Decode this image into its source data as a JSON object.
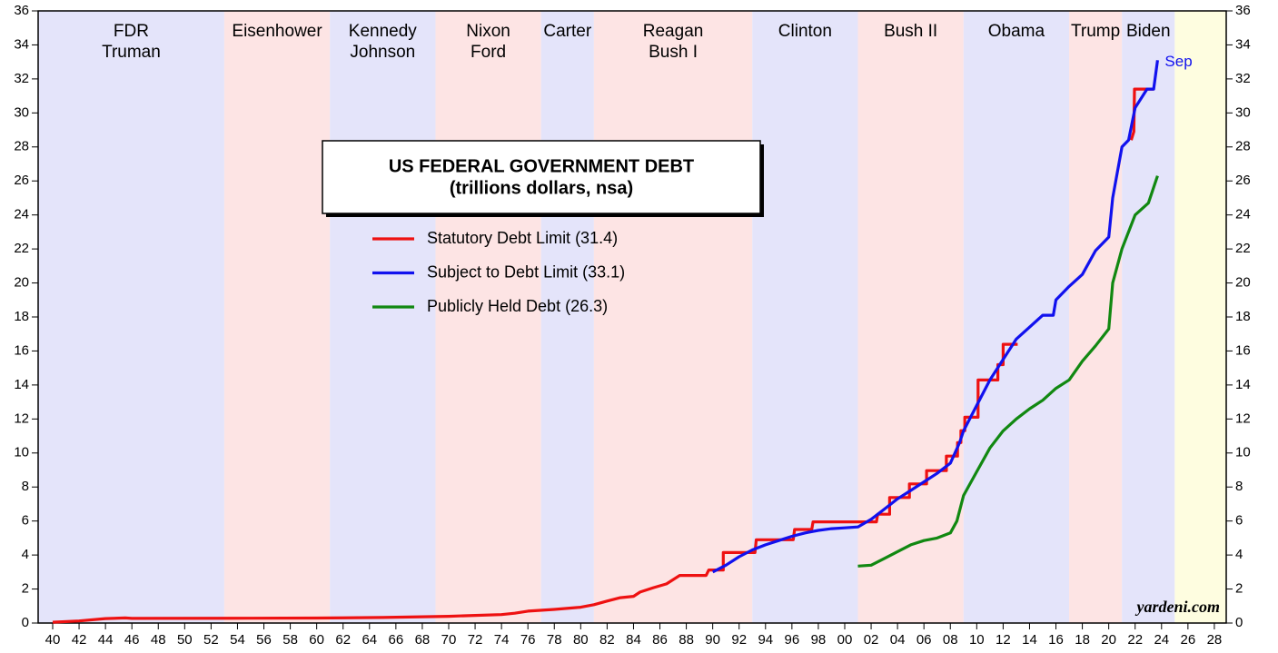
{
  "chart_data": {
    "type": "line",
    "title": [
      "US FEDERAL GOVERNMENT DEBT",
      "(trillions dollars, nsa)"
    ],
    "annotation": "Sep",
    "credit": "yardeni.com",
    "xlim": [
      1938.9,
      2028.9
    ],
    "ylim": [
      0,
      36
    ],
    "y2lim": [
      0,
      36
    ],
    "yticks": [
      0,
      2,
      4,
      6,
      8,
      10,
      12,
      14,
      16,
      18,
      20,
      22,
      24,
      26,
      28,
      30,
      32,
      34,
      36
    ],
    "y2ticks": [
      0,
      2,
      4,
      6,
      8,
      10,
      12,
      14,
      16,
      18,
      20,
      22,
      24,
      26,
      28,
      30,
      32,
      34,
      36
    ],
    "xticks": [
      {
        "value": 1940,
        "label": "40"
      },
      {
        "value": 1942,
        "label": "42"
      },
      {
        "value": 1944,
        "label": "44"
      },
      {
        "value": 1946,
        "label": "46"
      },
      {
        "value": 1948,
        "label": "48"
      },
      {
        "value": 1950,
        "label": "50"
      },
      {
        "value": 1952,
        "label": "52"
      },
      {
        "value": 1954,
        "label": "54"
      },
      {
        "value": 1956,
        "label": "56"
      },
      {
        "value": 1958,
        "label": "58"
      },
      {
        "value": 1960,
        "label": "60"
      },
      {
        "value": 1962,
        "label": "62"
      },
      {
        "value": 1964,
        "label": "64"
      },
      {
        "value": 1966,
        "label": "66"
      },
      {
        "value": 1968,
        "label": "68"
      },
      {
        "value": 1970,
        "label": "70"
      },
      {
        "value": 1972,
        "label": "72"
      },
      {
        "value": 1974,
        "label": "74"
      },
      {
        "value": 1976,
        "label": "76"
      },
      {
        "value": 1978,
        "label": "78"
      },
      {
        "value": 1980,
        "label": "80"
      },
      {
        "value": 1982,
        "label": "82"
      },
      {
        "value": 1984,
        "label": "84"
      },
      {
        "value": 1986,
        "label": "86"
      },
      {
        "value": 1988,
        "label": "88"
      },
      {
        "value": 1990,
        "label": "90"
      },
      {
        "value": 1992,
        "label": "92"
      },
      {
        "value": 1994,
        "label": "94"
      },
      {
        "value": 1996,
        "label": "96"
      },
      {
        "value": 1998,
        "label": "98"
      },
      {
        "value": 2000,
        "label": "00"
      },
      {
        "value": 2002,
        "label": "02"
      },
      {
        "value": 2004,
        "label": "04"
      },
      {
        "value": 2006,
        "label": "06"
      },
      {
        "value": 2008,
        "label": "08"
      },
      {
        "value": 2010,
        "label": "10"
      },
      {
        "value": 2012,
        "label": "12"
      },
      {
        "value": 2014,
        "label": "14"
      },
      {
        "value": 2016,
        "label": "16"
      },
      {
        "value": 2018,
        "label": "18"
      },
      {
        "value": 2020,
        "label": "20"
      },
      {
        "value": 2022,
        "label": "22"
      },
      {
        "value": 2024,
        "label": "24"
      },
      {
        "value": 2026,
        "label": "26"
      },
      {
        "value": 2028,
        "label": "28"
      }
    ],
    "bands": [
      {
        "label": [
          "FDR",
          "Truman"
        ],
        "start": 1938.9,
        "end": 1953,
        "color": "#e4e4fa"
      },
      {
        "label": [
          "Eisenhower"
        ],
        "start": 1953,
        "end": 1961,
        "color": "#fde4e4"
      },
      {
        "label": [
          "Kennedy",
          "Johnson"
        ],
        "start": 1961,
        "end": 1969,
        "color": "#e4e4fa"
      },
      {
        "label": [
          "Nixon",
          "Ford"
        ],
        "start": 1969,
        "end": 1977,
        "color": "#fde4e4"
      },
      {
        "label": [
          "Carter"
        ],
        "start": 1977,
        "end": 1981,
        "color": "#e4e4fa"
      },
      {
        "label": [
          "Reagan",
          "Bush I"
        ],
        "start": 1981,
        "end": 1993,
        "color": "#fde4e4"
      },
      {
        "label": [
          "Clinton"
        ],
        "start": 1993,
        "end": 2001,
        "color": "#e4e4fa"
      },
      {
        "label": [
          "Bush II"
        ],
        "start": 2001,
        "end": 2009,
        "color": "#fde4e4"
      },
      {
        "label": [
          "Obama"
        ],
        "start": 2009,
        "end": 2017,
        "color": "#e4e4fa"
      },
      {
        "label": [
          "Trump"
        ],
        "start": 2017,
        "end": 2021,
        "color": "#fde4e4"
      },
      {
        "label": [
          "Biden"
        ],
        "start": 2021,
        "end": 2025,
        "color": "#e4e4fa"
      }
    ],
    "future_band": {
      "start": 2025,
      "end": 2028.9,
      "color": "#fefde0"
    },
    "series": [
      {
        "name": "Statutory Debt Limit (31.4)",
        "color": "#ee1111",
        "x": [
          1940,
          1942,
          1944,
          1945.5,
          1946,
          1955,
          1960,
          1965,
          1970,
          1972,
          1974,
          1975,
          1976,
          1978,
          1980,
          1981,
          1982,
          1983,
          1984,
          1984.5,
          1985.5,
          1986.5,
          1987.5,
          1989.5,
          1989.7,
          1990.8,
          1990.8,
          1993.2,
          1993.3,
          1996.1,
          1996.2,
          1997.5,
          1997.6,
          2002.4,
          2002.5,
          2003.4,
          2003.4,
          2004.9,
          2004.9,
          2006.2,
          2006.2,
          2007.7,
          2007.7,
          2008.55,
          2008.55,
          2008.8,
          2008.8,
          2009.1,
          2009.1,
          2010.1,
          2010.1,
          2011.6,
          2011.6,
          2012.0,
          2012.0,
          2013.1,
          2017,
          2021.7,
          2021.9,
          2021.95,
          2023.4
        ],
        "values": [
          0.049,
          0.125,
          0.26,
          0.3,
          0.275,
          0.281,
          0.295,
          0.324,
          0.395,
          0.45,
          0.495,
          0.577,
          0.7,
          0.8,
          0.93,
          1.08,
          1.29,
          1.49,
          1.57,
          1.82,
          2.08,
          2.3,
          2.8,
          2.8,
          3.12,
          3.12,
          4.145,
          4.145,
          4.9,
          4.9,
          5.5,
          5.5,
          5.95,
          5.95,
          6.4,
          6.4,
          7.384,
          7.384,
          8.184,
          8.184,
          8.965,
          8.965,
          9.815,
          9.815,
          10.615,
          10.615,
          11.315,
          11.315,
          12.104,
          12.104,
          14.294,
          14.294,
          15.194,
          15.194,
          16.394,
          16.394,
          null,
          28.4,
          28.9,
          31.4,
          31.4
        ]
      },
      {
        "name": "Subject to Debt Limit (33.1)",
        "color": "#1111ee",
        "x": [
          1990,
          1991,
          1992,
          1993,
          1994,
          1995,
          1996,
          1997,
          1998,
          1999,
          2000,
          2001,
          2002,
          2003,
          2004,
          2005,
          2006,
          2007,
          2008,
          2008.7,
          2009,
          2010,
          2011,
          2012,
          2013,
          2014,
          2015,
          2015.8,
          2016,
          2017,
          2018,
          2019,
          2020,
          2020.3,
          2021,
          2021.5,
          2022,
          2022.9,
          2023.4,
          2023.7
        ],
        "values": [
          3.0,
          3.4,
          3.9,
          4.3,
          4.6,
          4.85,
          5.1,
          5.3,
          5.45,
          5.55,
          5.6,
          5.65,
          6.1,
          6.7,
          7.3,
          7.8,
          8.3,
          8.8,
          9.4,
          10.6,
          11.3,
          12.8,
          14.3,
          15.5,
          16.7,
          17.4,
          18.1,
          18.1,
          19.0,
          19.8,
          20.5,
          21.9,
          22.7,
          25.0,
          28.0,
          28.4,
          30.3,
          31.4,
          31.4,
          33.1
        ]
      },
      {
        "name": "Publicly Held Debt (26.3)",
        "color": "#118811",
        "x": [
          2001,
          2002,
          2003,
          2004,
          2005,
          2006,
          2007,
          2008,
          2008.5,
          2009,
          2010,
          2011,
          2012,
          2013,
          2014,
          2015,
          2016,
          2017,
          2018,
          2019,
          2020,
          2020.3,
          2021,
          2022,
          2023,
          2023.7
        ],
        "values": [
          3.35,
          3.4,
          3.8,
          4.2,
          4.6,
          4.85,
          5.0,
          5.3,
          6.0,
          7.5,
          8.9,
          10.3,
          11.3,
          12.0,
          12.6,
          13.1,
          13.8,
          14.3,
          15.4,
          16.3,
          17.3,
          20.0,
          22.0,
          24.0,
          24.7,
          26.3
        ]
      }
    ]
  }
}
